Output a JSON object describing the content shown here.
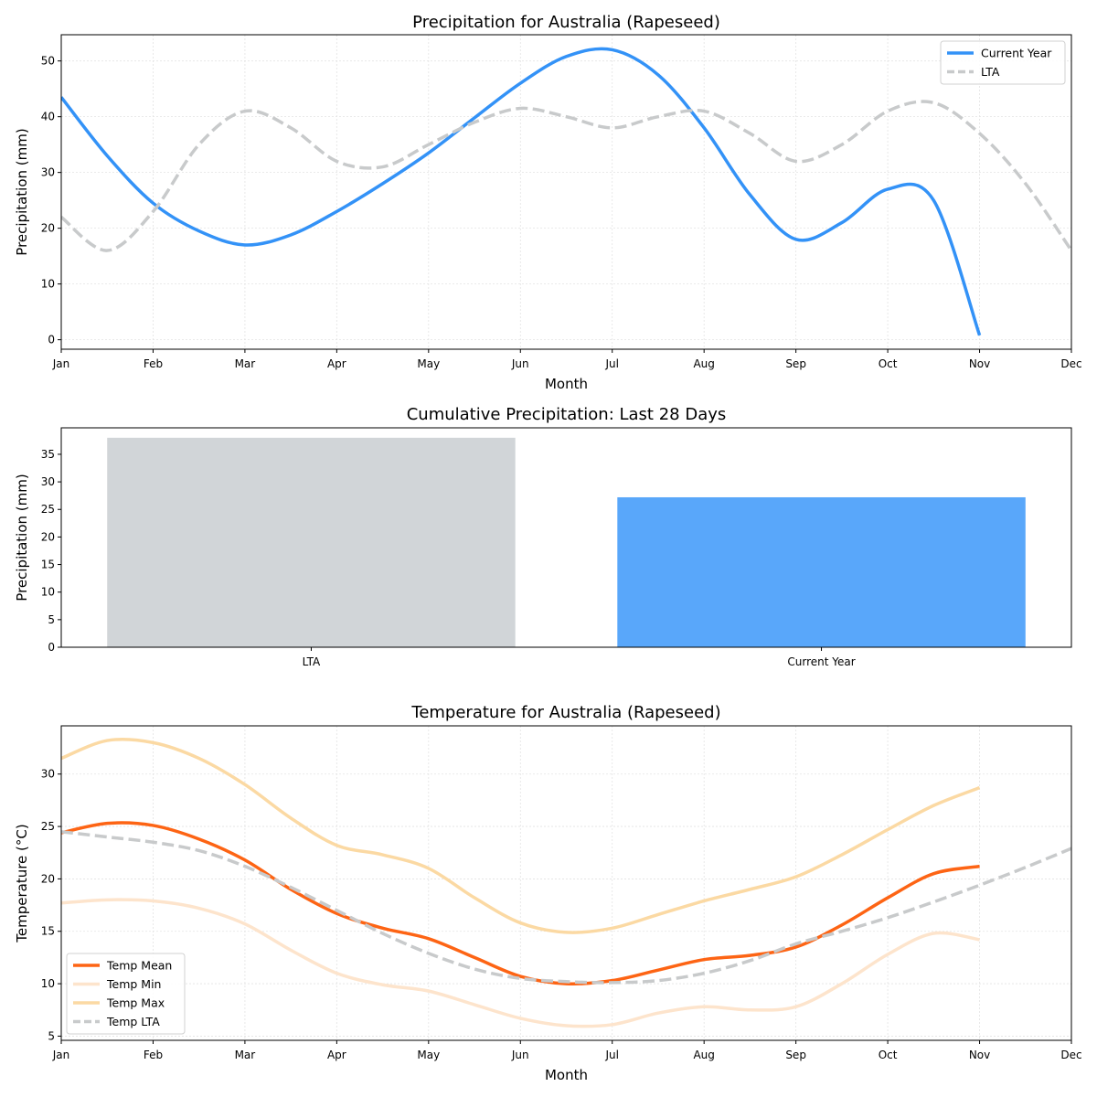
{
  "chart_data": [
    {
      "type": "line",
      "title": "Precipitation for Australia (Rapeseed)",
      "xlabel": "Month",
      "ylabel": "Precipitation (mm)",
      "xticks": [
        "Jan",
        "Feb",
        "Mar",
        "Apr",
        "May",
        "Jun",
        "Jul",
        "Aug",
        "Sep",
        "Oct",
        "Nov",
        "Dec"
      ],
      "xlim": [
        0,
        11
      ],
      "ylim": [
        -1.7,
        54.7
      ],
      "yticks": [
        0,
        10,
        20,
        30,
        40,
        50
      ],
      "grid": true,
      "legend": "top-right",
      "series": [
        {
          "name": "Current Year",
          "color": "#3392f7",
          "dash": false,
          "x": [
            0,
            0.5,
            1,
            1.5,
            2,
            2.5,
            3,
            3.5,
            4,
            4.5,
            5,
            5.5,
            6,
            6.5,
            7,
            7.5,
            8,
            8.5,
            9,
            9.5,
            10
          ],
          "y": [
            43.5,
            33,
            24.5,
            19.5,
            17,
            18.8,
            23,
            28,
            33.5,
            39.8,
            46,
            50.8,
            52,
            47.5,
            38,
            26,
            18,
            21,
            27,
            25,
            0.8
          ]
        },
        {
          "name": "LTA",
          "color": "#c8cacb",
          "dash": true,
          "x": [
            0,
            0.5,
            1,
            1.5,
            2,
            2.5,
            3,
            3.5,
            4,
            4.5,
            5,
            5.5,
            6,
            6.5,
            7,
            7.5,
            8,
            8.5,
            9,
            9.5,
            10,
            10.5,
            11
          ],
          "y": [
            22,
            16,
            23,
            35,
            41,
            38,
            32,
            31,
            35,
            39,
            41.5,
            40,
            38,
            40,
            41,
            37,
            32,
            35,
            41,
            42.5,
            37,
            28,
            16
          ]
        }
      ]
    },
    {
      "type": "bar",
      "title": "Cumulative Precipitation: Last 28 Days",
      "ylabel": "Precipitation (mm)",
      "categories": [
        "LTA",
        "Current Year"
      ],
      "values": [
        38,
        27.2
      ],
      "colors": [
        "#d1d5d8",
        "#59a7fa"
      ],
      "ylim": [
        0,
        39.8
      ],
      "yticks": [
        0,
        5,
        10,
        15,
        20,
        25,
        30,
        35
      ],
      "grid": false
    },
    {
      "type": "line",
      "title": "Temperature for Australia (Rapeseed)",
      "xlabel": "Month",
      "ylabel": "Temperature (°C)",
      "xticks": [
        "Jan",
        "Feb",
        "Mar",
        "Apr",
        "May",
        "Jun",
        "Jul",
        "Aug",
        "Sep",
        "Oct",
        "Nov",
        "Dec"
      ],
      "xlim": [
        0,
        11
      ],
      "ylim": [
        4.6,
        34.6
      ],
      "yticks": [
        5,
        10,
        15,
        20,
        25,
        30
      ],
      "grid": true,
      "legend": "bottom-left",
      "series": [
        {
          "name": "Temp Mean",
          "color": "#fd6414",
          "dash": false,
          "x": [
            0,
            0.5,
            1,
            1.5,
            2,
            2.5,
            3,
            3.5,
            4,
            4.5,
            5,
            5.5,
            6,
            6.5,
            7,
            7.5,
            8,
            8.5,
            9,
            9.5,
            10
          ],
          "y": [
            24.4,
            25.3,
            25.1,
            23.8,
            21.8,
            19,
            16.7,
            15.3,
            14.3,
            12.5,
            10.7,
            10,
            10.3,
            11.3,
            12.3,
            12.7,
            13.5,
            15.6,
            18.2,
            20.5,
            21.2
          ]
        },
        {
          "name": "Temp Min",
          "color": "#fde4cc",
          "dash": false,
          "x": [
            0,
            0.5,
            1,
            1.5,
            2,
            2.5,
            3,
            3.5,
            4,
            4.5,
            5,
            5.5,
            6,
            6.5,
            7,
            7.5,
            8,
            8.5,
            9,
            9.5,
            10
          ],
          "y": [
            17.7,
            18,
            17.9,
            17.2,
            15.7,
            13.2,
            11,
            9.9,
            9.3,
            8,
            6.7,
            6,
            6.1,
            7.2,
            7.8,
            7.5,
            7.8,
            10,
            12.8,
            14.8,
            14.2
          ]
        },
        {
          "name": "Temp Max",
          "color": "#fbd9a3",
          "dash": false,
          "x": [
            0,
            0.5,
            1,
            1.5,
            2,
            2.5,
            3,
            3.5,
            4,
            4.5,
            5,
            5.5,
            6,
            6.5,
            7,
            7.5,
            8,
            8.5,
            9,
            9.5,
            10
          ],
          "y": [
            31.5,
            33.2,
            33,
            31.5,
            29,
            25.8,
            23.2,
            22.3,
            21,
            18.2,
            15.8,
            14.9,
            15.3,
            16.6,
            17.9,
            19,
            20.2,
            22.3,
            24.7,
            27,
            28.7
          ]
        },
        {
          "name": "Temp LTA",
          "color": "#c8cacb",
          "dash": true,
          "x": [
            0,
            0.5,
            1,
            1.5,
            2,
            2.5,
            3,
            3.5,
            4,
            4.5,
            5,
            5.5,
            6,
            6.5,
            7,
            7.5,
            8,
            8.5,
            9,
            9.5,
            10,
            10.5,
            11
          ],
          "y": [
            24.5,
            24,
            23.5,
            22.7,
            21.2,
            19.2,
            17,
            14.8,
            12.9,
            11.4,
            10.5,
            10.2,
            10.1,
            10.3,
            11,
            12.2,
            13.8,
            15,
            16.3,
            17.8,
            19.4,
            21.1,
            22.9
          ]
        }
      ]
    }
  ]
}
